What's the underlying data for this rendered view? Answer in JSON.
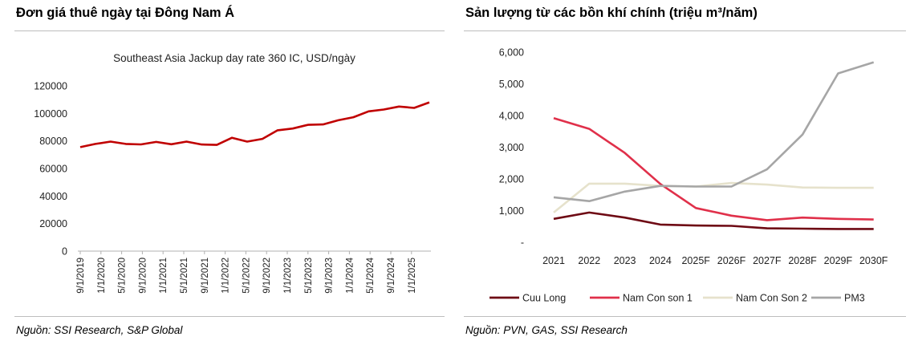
{
  "left": {
    "title": "Đơn giá thuê ngày tại Đông Nam Á",
    "source": "Nguồn: SSI Research, S&P Global"
  },
  "right": {
    "title": "Sản lượng từ các bồn khí chính (triệu m³/năm)",
    "source": "Nguồn: PVN, GAS, SSI Research"
  },
  "chart_data": [
    {
      "type": "line",
      "title": "Southeast Asia Jackup day rate 360 IC, USD/ngày",
      "ylim": [
        0,
        120000
      ],
      "yticks": [
        0,
        20000,
        40000,
        60000,
        80000,
        100000,
        120000
      ],
      "ytick_labels": [
        "0",
        "20000",
        "40000",
        "60000",
        "80000",
        "100000",
        "120000"
      ],
      "xtick_labels": [
        "9/1/2019",
        "1/1/2020",
        "5/1/2020",
        "9/1/2020",
        "1/1/2021",
        "5/1/2021",
        "9/1/2021",
        "1/1/2022",
        "5/1/2022",
        "9/1/2022",
        "1/1/2023",
        "5/1/2023",
        "9/1/2023",
        "1/1/2024",
        "5/1/2024",
        "9/1/2024",
        "1/1/2025"
      ],
      "grid": false,
      "color": "#c00000",
      "series": [
        {
          "values": [
            75500,
            77800,
            79500,
            77800,
            77500,
            79300,
            77600,
            79500,
            77400,
            77100,
            82300,
            79500,
            81500,
            87700,
            89000,
            91700,
            92000,
            95000,
            97200,
            101500,
            102800,
            105000,
            104000,
            108000
          ]
        }
      ]
    },
    {
      "type": "line",
      "ylim": [
        0,
        6000
      ],
      "yticks": [
        0,
        1000,
        2000,
        3000,
        4000,
        5000,
        6000
      ],
      "ytick_labels": [
        "-",
        "1,000",
        "2,000",
        "3,000",
        "4,000",
        "5,000",
        "6,000"
      ],
      "categories": [
        "2021",
        "2022",
        "2023",
        "2024",
        "2025F",
        "2026F",
        "2027F",
        "2028F",
        "2029F",
        "2030F"
      ],
      "grid": false,
      "legend": "bottom",
      "series": [
        {
          "name": "Cuu Long",
          "color": "#6e0a14",
          "values": [
            740,
            940,
            780,
            560,
            530,
            520,
            440,
            430,
            420,
            420
          ]
        },
        {
          "name": "Nam Con son 1",
          "color": "#e0304a",
          "values": [
            3920,
            3580,
            2820,
            1840,
            1080,
            840,
            700,
            780,
            740,
            720
          ]
        },
        {
          "name": "Nam Con Son 2",
          "color": "#e6e2cc",
          "values": [
            940,
            1850,
            1850,
            1780,
            1760,
            1870,
            1820,
            1730,
            1720,
            1720
          ]
        },
        {
          "name": "PM3",
          "color": "#a6a6a6",
          "values": [
            1420,
            1300,
            1600,
            1780,
            1760,
            1760,
            2300,
            3400,
            5330,
            5680
          ]
        }
      ]
    }
  ]
}
